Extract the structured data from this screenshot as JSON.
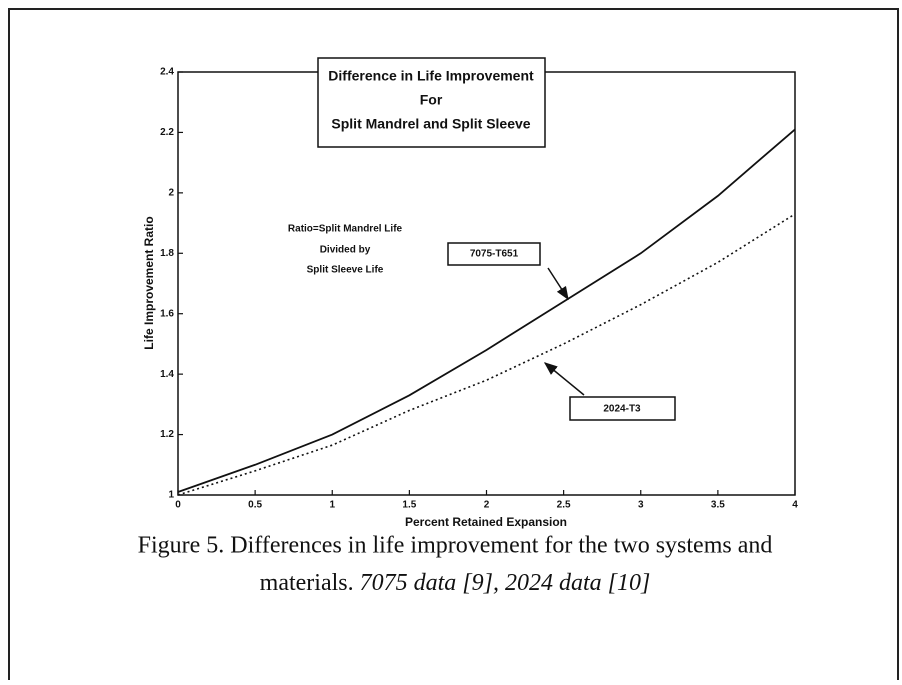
{
  "chart_data": {
    "type": "line",
    "title": [
      "Difference in Life Improvement",
      "For",
      "Split Mandrel and Split Sleeve"
    ],
    "annotation": [
      "Ratio=Split Mandrel Life",
      "Divided by",
      "Split Sleeve Life"
    ],
    "x_label": "Percent Retained Expansion",
    "y_label": "Life Improvement Ratio",
    "x": [
      0,
      0.5,
      1,
      1.5,
      2,
      2.5,
      3,
      3.5,
      4
    ],
    "series": [
      {
        "name": "7075-T651",
        "color": "#111111",
        "style": "solid",
        "values": [
          1.01,
          1.1,
          1.2,
          1.33,
          1.48,
          1.64,
          1.8,
          1.99,
          2.21
        ]
      },
      {
        "name": "2024-T3",
        "color": "#111111",
        "style": "dotted",
        "values": [
          1.0,
          1.08,
          1.165,
          1.28,
          1.38,
          1.5,
          1.63,
          1.77,
          1.93
        ]
      }
    ],
    "xlim": [
      0,
      4
    ],
    "ylim": [
      1,
      2.4
    ],
    "xticks": [
      0,
      0.5,
      1,
      1.5,
      2,
      2.5,
      3,
      3.5,
      4
    ],
    "yticks": [
      1,
      1.2,
      1.4,
      1.6,
      1.8,
      2,
      2.2,
      2.4
    ],
    "caption": {
      "line1": "Figure 5.  Differences in life improvement for the two systems and",
      "line2": "materials. ",
      "line2_italic": "7075 data [9], 2024 data [10]"
    }
  }
}
